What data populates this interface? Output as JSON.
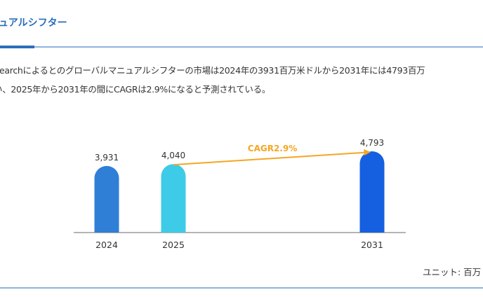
{
  "header": {
    "title": "ュアルシフター"
  },
  "description": {
    "line1": "earchによるとのグローバルマニュアルシフターの市場は2024年の3931百万米ドルから2031年には4793百万",
    "line2": "い、2025年から2031年の間にCAGRは2.9%になると予測されている。"
  },
  "unit_label": "ユニット: 百万",
  "chart_data": {
    "type": "bar",
    "categories": [
      "2024",
      "2025",
      "2031"
    ],
    "values": [
      3931,
      4040,
      4793
    ],
    "data_labels": [
      "3,931",
      "4,040",
      "4,793"
    ],
    "colors": [
      "#2f7fd6",
      "#3ecbe8",
      "#1560e0"
    ],
    "annotation": {
      "text": "CAGR2.9%",
      "from": "2025",
      "to": "2031",
      "color": "#f5a623"
    },
    "ylim": [
      0,
      4793
    ],
    "grid": false
  }
}
